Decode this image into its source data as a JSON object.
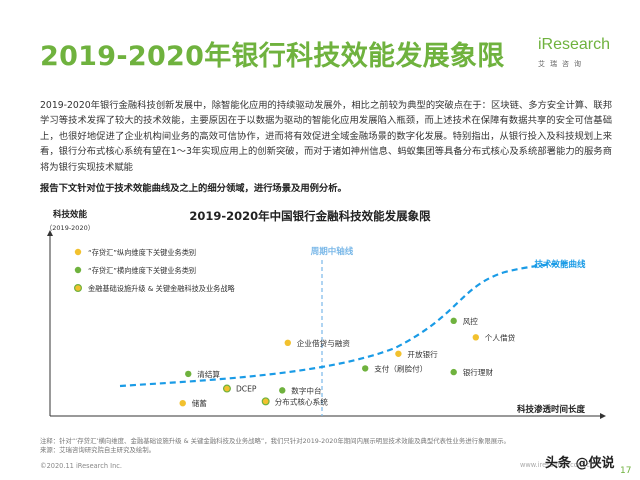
{
  "page": {
    "title": "2019-2020年银行科技效能发展象限",
    "logo": {
      "name": "iResearch",
      "cn": "艾瑞咨询"
    },
    "intro": "2019-2020年银行金融科技创新发展中，除智能化应用的持续驱动发展外，相比之前较为典型的突破点在于：区块链、多方安全计算、联邦学习等技术发挥了较大的技术效能，主要原因在于以数据为驱动的智能化应用发展陷入瓶颈，而上述技术在保障有数据共享的安全可信基础上，也很好地促进了企业机构间业务的高效可信协作，进而将有效促进全域金融场景的数字化发展。特别指出，从银行投入及科技规划上来看，银行分布式核心系统有望在1～3年实现应用上的创新突破，而对于诸如神州信息、蚂蚁集团等具备分布式核心及系统部署能力的服务商将为银行实现技术赋能",
    "lead": "报告下文针对位于技术效能曲线及之上的细分领域，进行场景及用例分析。",
    "notes": [
      "注释：针对“‘存贷汇’横向维度、金融基础设施升级 & 关键金融科技及业务战略”，我们只针对2019-2020年期间内展示明显技术效能及典型代表性业务进行象限展示。",
      "来源：艾瑞咨询研究院自主研究及绘制。"
    ],
    "copyright": "©2020.11 iResearch Inc.",
    "site": "www.iresearch.com.cn",
    "watermark": "头条 @侠说",
    "page_number": "17"
  },
  "chart_data": {
    "type": "scatter",
    "title": "2019-2020年中国银行金融科技效能发展象限",
    "ylabel": "科技效能",
    "ylabel_sub": "（2019-2020）",
    "xlabel": "科技渗透时间长度",
    "curve_label": "技术效能曲线",
    "axis_label": "周期中轴线",
    "legend": [
      {
        "name": "“存贷汇”纵向维度下关键业务类别",
        "color": "#f2c12e"
      },
      {
        "name": "“存贷汇”横向维度下关键业务类别",
        "color": "#6fb23e"
      },
      {
        "name": "金融基础设施升级 & 关键金融科技及业务战略",
        "color": "#f2c12e",
        "ring": "#6fb23e"
      }
    ],
    "colors": {
      "curve": "#1a9be6",
      "axis": "#7ab8e8",
      "accent": "#6fb23e",
      "yellow": "#f2c12e"
    },
    "points": [
      {
        "label": "储蓄",
        "x": 0.24,
        "y": 0.07,
        "category": 1
      },
      {
        "label": "清结算",
        "x": 0.25,
        "y": 0.23,
        "category": 2
      },
      {
        "label": "DCEP",
        "x": 0.32,
        "y": 0.15,
        "category": 3
      },
      {
        "label": "分布式核心系统",
        "x": 0.39,
        "y": 0.08,
        "category": 3
      },
      {
        "label": "数字中台",
        "x": 0.42,
        "y": 0.14,
        "category": 2
      },
      {
        "label": "企业借贷与融资",
        "x": 0.43,
        "y": 0.4,
        "category": 1
      },
      {
        "label": "支付（刷脸付）",
        "x": 0.57,
        "y": 0.26,
        "category": 2
      },
      {
        "label": "开放银行",
        "x": 0.63,
        "y": 0.34,
        "category": 1
      },
      {
        "label": "风控",
        "x": 0.73,
        "y": 0.52,
        "category": 2
      },
      {
        "label": "个人借贷",
        "x": 0.77,
        "y": 0.43,
        "category": 1
      },
      {
        "label": "银行理财",
        "x": 0.73,
        "y": 0.24,
        "category": 2
      }
    ]
  }
}
